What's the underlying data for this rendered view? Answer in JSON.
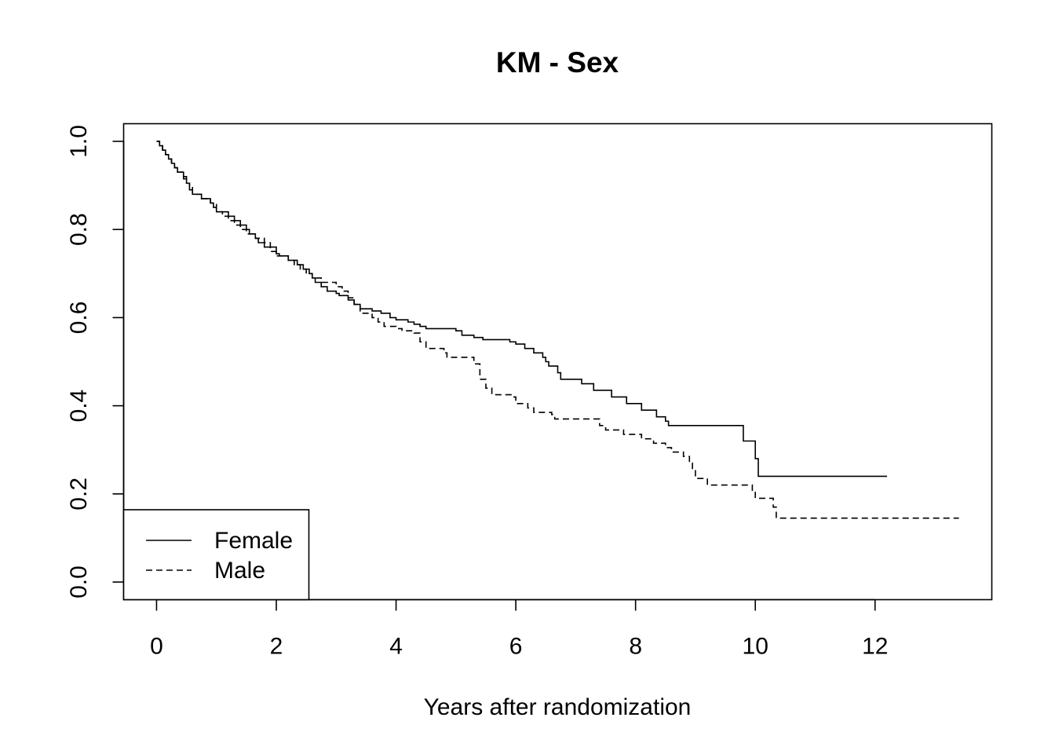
{
  "chart_data": {
    "type": "line",
    "title": "KM - Sex",
    "xlabel": "Years after randomization",
    "ylabel": "",
    "xlim": [
      -0.55,
      13.95
    ],
    "ylim": [
      -0.04,
      1.04
    ],
    "xticks": [
      0,
      2,
      4,
      6,
      8,
      10,
      12
    ],
    "yticks": [
      0.0,
      0.2,
      0.4,
      0.6,
      0.8,
      1.0
    ],
    "xtick_labels": [
      "0",
      "2",
      "4",
      "6",
      "8",
      "10",
      "12"
    ],
    "ytick_labels": [
      "0.0",
      "0.2",
      "0.4",
      "0.6",
      "0.8",
      "1.0"
    ],
    "step": true,
    "grid": false,
    "legend_position": "bottom-left",
    "series": [
      {
        "name": "Female",
        "line_style": "solid",
        "color": "#000000",
        "points": [
          [
            0,
            1.0
          ],
          [
            0.05,
            0.99
          ],
          [
            0.1,
            0.98
          ],
          [
            0.15,
            0.97
          ],
          [
            0.2,
            0.96
          ],
          [
            0.25,
            0.95
          ],
          [
            0.3,
            0.94
          ],
          [
            0.35,
            0.93
          ],
          [
            0.45,
            0.92
          ],
          [
            0.5,
            0.905
          ],
          [
            0.55,
            0.89
          ],
          [
            0.6,
            0.88
          ],
          [
            0.75,
            0.87
          ],
          [
            0.9,
            0.86
          ],
          [
            0.95,
            0.85
          ],
          [
            1.0,
            0.84
          ],
          [
            1.2,
            0.83
          ],
          [
            1.3,
            0.82
          ],
          [
            1.4,
            0.81
          ],
          [
            1.5,
            0.8
          ],
          [
            1.55,
            0.79
          ],
          [
            1.65,
            0.78
          ],
          [
            1.7,
            0.77
          ],
          [
            1.8,
            0.76
          ],
          [
            2.0,
            0.745
          ],
          [
            2.05,
            0.74
          ],
          [
            2.2,
            0.73
          ],
          [
            2.35,
            0.72
          ],
          [
            2.45,
            0.71
          ],
          [
            2.55,
            0.7
          ],
          [
            2.6,
            0.69
          ],
          [
            2.65,
            0.68
          ],
          [
            2.75,
            0.67
          ],
          [
            2.85,
            0.66
          ],
          [
            3.0,
            0.655
          ],
          [
            3.05,
            0.65
          ],
          [
            3.2,
            0.64
          ],
          [
            3.3,
            0.63
          ],
          [
            3.4,
            0.62
          ],
          [
            3.6,
            0.615
          ],
          [
            3.75,
            0.61
          ],
          [
            3.9,
            0.6
          ],
          [
            4.0,
            0.595
          ],
          [
            4.2,
            0.59
          ],
          [
            4.3,
            0.585
          ],
          [
            4.4,
            0.58
          ],
          [
            4.5,
            0.575
          ],
          [
            5.0,
            0.57
          ],
          [
            5.1,
            0.56
          ],
          [
            5.3,
            0.555
          ],
          [
            5.45,
            0.55
          ],
          [
            5.9,
            0.545
          ],
          [
            6.0,
            0.54
          ],
          [
            6.15,
            0.53
          ],
          [
            6.3,
            0.52
          ],
          [
            6.45,
            0.51
          ],
          [
            6.5,
            0.5
          ],
          [
            6.55,
            0.49
          ],
          [
            6.7,
            0.475
          ],
          [
            6.75,
            0.46
          ],
          [
            7.1,
            0.45
          ],
          [
            7.3,
            0.435
          ],
          [
            7.6,
            0.42
          ],
          [
            7.85,
            0.405
          ],
          [
            8.1,
            0.39
          ],
          [
            8.35,
            0.375
          ],
          [
            8.5,
            0.365
          ],
          [
            8.55,
            0.355
          ],
          [
            9.8,
            0.32
          ],
          [
            10.0,
            0.28
          ],
          [
            10.05,
            0.24
          ],
          [
            12.2,
            0.24
          ]
        ]
      },
      {
        "name": "Male",
        "line_style": "dashed",
        "color": "#000000",
        "points": [
          [
            0,
            1.0
          ],
          [
            0.05,
            0.99
          ],
          [
            0.1,
            0.98
          ],
          [
            0.15,
            0.97
          ],
          [
            0.2,
            0.96
          ],
          [
            0.25,
            0.95
          ],
          [
            0.3,
            0.94
          ],
          [
            0.35,
            0.93
          ],
          [
            0.45,
            0.915
          ],
          [
            0.5,
            0.905
          ],
          [
            0.55,
            0.895
          ],
          [
            0.6,
            0.88
          ],
          [
            0.75,
            0.87
          ],
          [
            0.9,
            0.86
          ],
          [
            1.0,
            0.84
          ],
          [
            1.1,
            0.83
          ],
          [
            1.2,
            0.82
          ],
          [
            1.3,
            0.81
          ],
          [
            1.4,
            0.8
          ],
          [
            1.5,
            0.79
          ],
          [
            1.65,
            0.78
          ],
          [
            1.8,
            0.77
          ],
          [
            1.9,
            0.75
          ],
          [
            2.0,
            0.74
          ],
          [
            2.2,
            0.73
          ],
          [
            2.3,
            0.72
          ],
          [
            2.4,
            0.71
          ],
          [
            2.5,
            0.7
          ],
          [
            2.6,
            0.69
          ],
          [
            2.75,
            0.68
          ],
          [
            3.0,
            0.67
          ],
          [
            3.1,
            0.66
          ],
          [
            3.2,
            0.645
          ],
          [
            3.3,
            0.63
          ],
          [
            3.4,
            0.61
          ],
          [
            3.6,
            0.6
          ],
          [
            3.7,
            0.59
          ],
          [
            3.8,
            0.58
          ],
          [
            4.0,
            0.575
          ],
          [
            4.1,
            0.57
          ],
          [
            4.3,
            0.565
          ],
          [
            4.4,
            0.545
          ],
          [
            4.5,
            0.53
          ],
          [
            4.8,
            0.52
          ],
          [
            4.85,
            0.51
          ],
          [
            5.3,
            0.495
          ],
          [
            5.4,
            0.46
          ],
          [
            5.5,
            0.44
          ],
          [
            5.6,
            0.425
          ],
          [
            5.95,
            0.42
          ],
          [
            6.0,
            0.405
          ],
          [
            6.2,
            0.395
          ],
          [
            6.3,
            0.385
          ],
          [
            6.6,
            0.38
          ],
          [
            6.65,
            0.37
          ],
          [
            7.4,
            0.355
          ],
          [
            7.5,
            0.345
          ],
          [
            7.8,
            0.335
          ],
          [
            8.1,
            0.325
          ],
          [
            8.3,
            0.315
          ],
          [
            8.5,
            0.305
          ],
          [
            8.6,
            0.295
          ],
          [
            8.8,
            0.285
          ],
          [
            8.9,
            0.27
          ],
          [
            8.95,
            0.255
          ],
          [
            9.0,
            0.235
          ],
          [
            9.2,
            0.22
          ],
          [
            9.95,
            0.205
          ],
          [
            10.0,
            0.19
          ],
          [
            10.3,
            0.17
          ],
          [
            10.35,
            0.145
          ],
          [
            13.4,
            0.145
          ]
        ]
      }
    ]
  }
}
